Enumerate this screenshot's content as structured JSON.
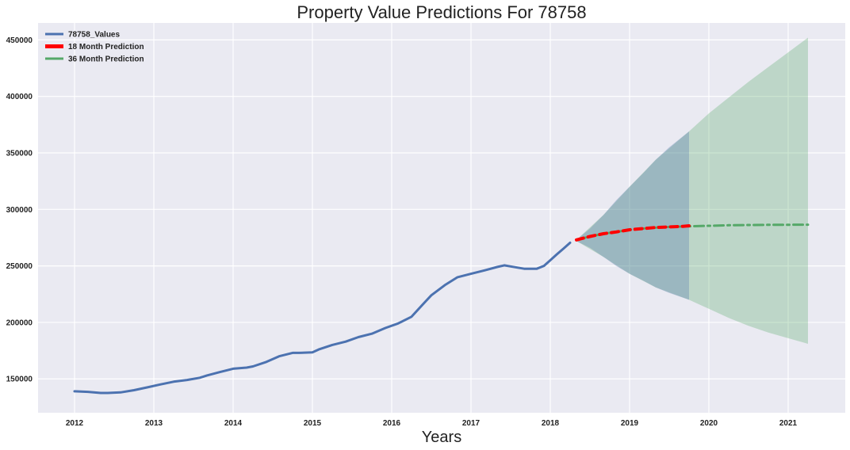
{
  "chart_data": {
    "type": "line",
    "title": "Property Value Predictions For 78758",
    "xlabel": "Years",
    "ylabel": "",
    "xlim": [
      2011.54,
      2021.72
    ],
    "ylim": [
      120000,
      465000
    ],
    "x_ticks": [
      2012,
      2013,
      2014,
      2015,
      2016,
      2017,
      2018,
      2019,
      2020,
      2021
    ],
    "y_ticks": [
      150000,
      200000,
      250000,
      300000,
      350000,
      400000,
      450000
    ],
    "grid": true,
    "background": "#EAEAF2",
    "legend_position": "top-left",
    "series": [
      {
        "name": "78758_Values",
        "color": "#4C72B0",
        "style": "solid",
        "x": [
          2012.0,
          2012.17,
          2012.33,
          2012.42,
          2012.58,
          2012.75,
          2012.92,
          2013.08,
          2013.25,
          2013.42,
          2013.58,
          2013.67,
          2013.83,
          2014.0,
          2014.17,
          2014.25,
          2014.42,
          2014.58,
          2014.75,
          2014.83,
          2015.0,
          2015.08,
          2015.25,
          2015.42,
          2015.58,
          2015.75,
          2015.92,
          2016.08,
          2016.25,
          2016.42,
          2016.5,
          2016.67,
          2016.83,
          2017.0,
          2017.17,
          2017.33,
          2017.42,
          2017.5,
          2017.67,
          2017.83,
          2017.92,
          2018.0,
          2018.08,
          2018.17,
          2018.25
        ],
        "y": [
          139000,
          138500,
          137500,
          137500,
          138000,
          140000,
          142500,
          145000,
          147500,
          149000,
          151000,
          153000,
          156000,
          159000,
          160000,
          161000,
          165000,
          170000,
          173000,
          173000,
          173500,
          176000,
          180000,
          183000,
          187000,
          190000,
          195000,
          199000,
          205000,
          218000,
          224000,
          233000,
          240000,
          243000,
          246000,
          249000,
          250500,
          249500,
          247500,
          247500,
          250000,
          255000,
          260000,
          265500,
          270500
        ]
      },
      {
        "name": "18 Month Prediction",
        "color": "#FF0000",
        "style": "dashed",
        "x": [
          2018.33,
          2018.5,
          2018.67,
          2018.83,
          2019.0,
          2019.17,
          2019.33,
          2019.5,
          2019.67,
          2019.75
        ],
        "y": [
          273000,
          276000,
          278500,
          280000,
          282000,
          283000,
          284000,
          284500,
          285000,
          285500
        ]
      },
      {
        "name": "36 Month Prediction",
        "color": "#55A868",
        "style": "dashdot",
        "x": [
          2018.33,
          2018.5,
          2018.67,
          2018.83,
          2019.0,
          2019.25,
          2019.5,
          2019.75,
          2020.0,
          2020.25,
          2020.5,
          2020.75,
          2021.0,
          2021.25
        ],
        "y": [
          273000,
          276000,
          278500,
          280000,
          282000,
          283500,
          284500,
          285000,
          285500,
          286000,
          286200,
          286300,
          286400,
          286500
        ]
      }
    ],
    "confidence_bands": [
      {
        "for_series": "18 Month Prediction",
        "color": "#4C72B0",
        "x": [
          2018.33,
          2018.5,
          2018.67,
          2018.83,
          2019.0,
          2019.17,
          2019.33,
          2019.5,
          2019.75
        ],
        "upper": [
          273000,
          283000,
          295000,
          308000,
          320000,
          332000,
          344000,
          355000,
          369000
        ],
        "lower": [
          272000,
          266000,
          258000,
          250000,
          243000,
          237000,
          231000,
          226000,
          220000
        ]
      },
      {
        "for_series": "36 Month Prediction",
        "color": "#55A868",
        "x": [
          2018.33,
          2018.67,
          2019.0,
          2019.33,
          2019.75,
          2020.0,
          2020.25,
          2020.5,
          2020.75,
          2021.0,
          2021.25
        ],
        "upper": [
          273000,
          295000,
          320000,
          344000,
          369000,
          385000,
          399000,
          413000,
          426000,
          439000,
          452000
        ],
        "lower": [
          272000,
          258000,
          243000,
          231000,
          220000,
          212000,
          204000,
          197000,
          191000,
          186000,
          181000
        ]
      }
    ]
  }
}
